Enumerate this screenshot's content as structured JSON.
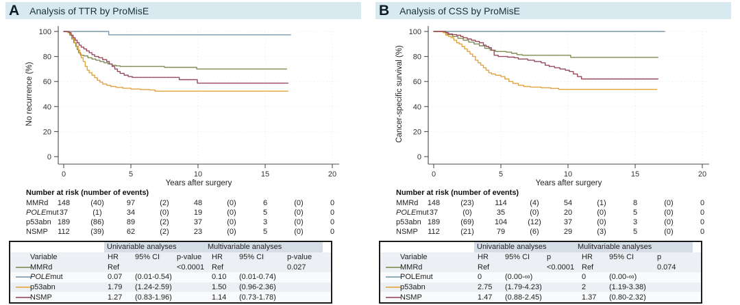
{
  "colors": {
    "header_bar": "#d9e9f0",
    "MMRd": "#7f8a52",
    "POLEmut": "#7b97ab",
    "p53abn": "#e1a23f",
    "NSMP": "#96485b",
    "axis": "#4a4a4a",
    "grid": "#ededed"
  },
  "panels": [
    {
      "letter": "A",
      "title": "Analysis of TTR by ProMisE",
      "risk_header": "Number at risk (number of events)",
      "risk_rows": [
        {
          "key": "MMRd",
          "label": "MMRd",
          "values": [
            "148",
            "(40)",
            "97",
            "(2)",
            "48",
            "(0)",
            "6",
            "(0)",
            "0"
          ]
        },
        {
          "key": "POLEmut",
          "italic_part": "POLE",
          "label": "mut",
          "values": [
            "37",
            "(1)",
            "34",
            "(0)",
            "19",
            "(0)",
            "5",
            "(0)",
            "0"
          ]
        },
        {
          "key": "p53abn",
          "label": "p53abn",
          "values": [
            "189",
            "(86)",
            "89",
            "(2)",
            "37",
            "(0)",
            "3",
            "(0)",
            "0"
          ]
        },
        {
          "key": "NSMP",
          "label": "NSMP",
          "values": [
            "112",
            "(39)",
            "62",
            "(2)",
            "23",
            "(0)",
            "5",
            "(0)",
            "0"
          ]
        }
      ],
      "stats": {
        "group_headers": [
          "Univariable analyses",
          "Multivariable analyses"
        ],
        "col_headers": [
          "Variable",
          "HR",
          "95% CI",
          "p-value",
          "HR",
          "95% CI",
          "p-value"
        ],
        "rows": [
          {
            "key": "MMRd",
            "label": "MMRd",
            "cells": [
              "Ref",
              "",
              "<0.0001",
              "Ref",
              "",
              "0.027"
            ]
          },
          {
            "key": "POLEmut",
            "italic_part": "POLE",
            "label": "mut",
            "cells": [
              "0.07",
              "(0.01-0.54)",
              "",
              "0.10",
              "(0.01-0.74)",
              ""
            ]
          },
          {
            "key": "p53abn",
            "label": "p53abn",
            "cells": [
              "1.79",
              "(1.24-2.59)",
              "",
              "1.50",
              "(0.96-2.36)",
              ""
            ]
          },
          {
            "key": "NSMP",
            "label": "NSMP",
            "cells": [
              "1.27",
              "(0.83-1.96)",
              "",
              "1.14",
              "(0.73-1.78)",
              ""
            ]
          }
        ]
      }
    },
    {
      "letter": "B",
      "title": "Analysis of CSS by ProMisE",
      "risk_header": "Number at risk (number of events)",
      "risk_rows": [
        {
          "key": "MMRd",
          "label": "MMRd",
          "values": [
            "148",
            "(23)",
            "114",
            "(4)",
            "54",
            "(1)",
            "8",
            "(0)",
            "0"
          ]
        },
        {
          "key": "POLEmut",
          "italic_part": "POLE",
          "label": "mut",
          "values": [
            "37",
            "(0)",
            "35",
            "(0)",
            "20",
            "(0)",
            "5",
            "(0)",
            "0"
          ]
        },
        {
          "key": "p53abn",
          "label": "p53abn",
          "values": [
            "189",
            "(69)",
            "104",
            "(12)",
            "37",
            "(0)",
            "3",
            "(0)",
            "0"
          ]
        },
        {
          "key": "NSMP",
          "label": "NSMP",
          "values": [
            "112",
            "(21)",
            "79",
            "(6)",
            "29",
            "(3)",
            "5",
            "(0)",
            "0"
          ]
        }
      ],
      "stats": {
        "group_headers": [
          "Univariable analyses",
          "Mulitvariable analyses"
        ],
        "col_headers": [
          "Variable",
          "HR",
          "95% CI",
          "p",
          "HR",
          "95% CI",
          "p"
        ],
        "rows": [
          {
            "key": "MMRd",
            "label": "MMRd",
            "cells": [
              "Ref",
              "",
              "<0.0001",
              "Ref",
              "",
              "0.074"
            ]
          },
          {
            "key": "POLEmut",
            "label": "POLEmut",
            "cells": [
              "0",
              "(0.00-∞)",
              "",
              "0",
              "(0.00-∞)",
              ""
            ]
          },
          {
            "key": "p53abn",
            "label": "p53abn",
            "cells": [
              "2.75",
              "(1.79-4.23)",
              "",
              "2",
              "(1.19-3.38)",
              ""
            ]
          },
          {
            "key": "NSMP",
            "label": "NSMP",
            "cells": [
              "1.47",
              "(0.88-2.45)",
              "",
              "1.37",
              "(0.80-2.32)",
              ""
            ]
          }
        ]
      }
    }
  ],
  "chart_data": [
    {
      "type": "line",
      "title": "Analysis of TTR by ProMisE",
      "xlabel": "Years after surgery",
      "ylabel": "No recurrence (%)",
      "xlim": [
        0,
        20
      ],
      "ylim": [
        0,
        100
      ],
      "x_ticks": [
        0,
        5,
        10,
        15,
        20
      ],
      "y_ticks": [
        0,
        20,
        40,
        60,
        80,
        100
      ],
      "grid": "faint-dotted",
      "legend_position": "table-below",
      "series": [
        {
          "name": "MMRd",
          "color": "#7f8a52",
          "points": [
            [
              0,
              100
            ],
            [
              0.3,
              99
            ],
            [
              0.45,
              97
            ],
            [
              0.6,
              94
            ],
            [
              0.75,
              91
            ],
            [
              0.9,
              88
            ],
            [
              1,
              85.5
            ],
            [
              1.1,
              83
            ],
            [
              1.25,
              81
            ],
            [
              1.5,
              80.5
            ],
            [
              1.8,
              79
            ],
            [
              2.1,
              78
            ],
            [
              2.4,
              77
            ],
            [
              2.7,
              76
            ],
            [
              3,
              75
            ],
            [
              3.3,
              74
            ],
            [
              3.6,
              73
            ],
            [
              3.9,
              72.5
            ],
            [
              4.2,
              72
            ],
            [
              7.4,
              72
            ],
            [
              7.5,
              71.3
            ],
            [
              9.8,
              71.3
            ],
            [
              9.9,
              70
            ],
            [
              16.6,
              70
            ]
          ]
        },
        {
          "name": "POLEmut",
          "color": "#7b97ab",
          "points": [
            [
              0,
              100
            ],
            [
              3.3,
              100
            ],
            [
              3.35,
              97.3
            ],
            [
              16.9,
              97.3
            ]
          ]
        },
        {
          "name": "p53abn",
          "color": "#e1a23f",
          "points": [
            [
              0,
              100
            ],
            [
              0.3,
              99
            ],
            [
              0.5,
              97
            ],
            [
              0.65,
              94
            ],
            [
              0.8,
              91
            ],
            [
              0.95,
              88
            ],
            [
              1.1,
              85
            ],
            [
              1.2,
              82
            ],
            [
              1.3,
              79
            ],
            [
              1.45,
              76
            ],
            [
              1.6,
              72
            ],
            [
              1.75,
              69
            ],
            [
              1.9,
              67
            ],
            [
              2.1,
              65
            ],
            [
              2.3,
              63
            ],
            [
              2.5,
              61
            ],
            [
              2.7,
              59.5
            ],
            [
              2.9,
              58
            ],
            [
              3.2,
              57
            ],
            [
              3.5,
              56
            ],
            [
              3.9,
              55.3
            ],
            [
              4.4,
              54.6
            ],
            [
              5,
              54
            ],
            [
              5.7,
              53.6
            ],
            [
              6.4,
              53.2
            ],
            [
              6.8,
              52.3
            ],
            [
              16.7,
              52.3
            ]
          ]
        },
        {
          "name": "NSMP",
          "color": "#96485b",
          "points": [
            [
              0,
              100
            ],
            [
              0.4,
              99
            ],
            [
              0.55,
              97
            ],
            [
              0.7,
              95
            ],
            [
              0.85,
              93
            ],
            [
              1,
              91
            ],
            [
              1.15,
              89
            ],
            [
              1.3,
              87.5
            ],
            [
              1.5,
              86
            ],
            [
              1.7,
              84.5
            ],
            [
              1.9,
              83
            ],
            [
              2.1,
              81.5
            ],
            [
              2.3,
              80
            ],
            [
              2.6,
              79
            ],
            [
              2.9,
              77.5
            ],
            [
              3.2,
              76
            ],
            [
              3.4,
              74
            ],
            [
              3.6,
              72
            ],
            [
              3.8,
              70
            ],
            [
              4,
              68
            ],
            [
              4.2,
              66.5
            ],
            [
              4.5,
              65
            ],
            [
              4.8,
              64
            ],
            [
              5.1,
              63.3
            ],
            [
              8.5,
              63.3
            ],
            [
              8.6,
              61.5
            ],
            [
              9.8,
              61.5
            ],
            [
              9.95,
              58.7
            ],
            [
              16.7,
              58.7
            ]
          ]
        }
      ]
    },
    {
      "type": "line",
      "title": "Analysis of CSS by ProMisE",
      "xlabel": "Years after surgery",
      "ylabel": "Cancer-specific survival (%)",
      "xlim": [
        0,
        20
      ],
      "ylim": [
        0,
        100
      ],
      "x_ticks": [
        0,
        5,
        10,
        15,
        20
      ],
      "y_ticks": [
        0,
        20,
        40,
        60,
        80,
        100
      ],
      "grid": "faint-dotted",
      "legend_position": "table-below",
      "series": [
        {
          "name": "MMRd",
          "color": "#7f8a52",
          "points": [
            [
              0,
              100
            ],
            [
              0.7,
              99.3
            ],
            [
              1,
              97.5
            ],
            [
              1.4,
              96
            ],
            [
              1.8,
              94.5
            ],
            [
              2.2,
              93
            ],
            [
              2.6,
              91.5
            ],
            [
              3,
              90
            ],
            [
              3.4,
              88.5
            ],
            [
              3.8,
              86.5
            ],
            [
              4.2,
              85
            ],
            [
              4.6,
              84
            ],
            [
              5.4,
              83.5
            ],
            [
              5.8,
              82.5
            ],
            [
              6.2,
              81.5
            ],
            [
              6.6,
              81
            ],
            [
              10.1,
              81
            ],
            [
              10.2,
              79.3
            ],
            [
              16.7,
              79.3
            ]
          ]
        },
        {
          "name": "POLEmut",
          "color": "#7b97ab",
          "points": [
            [
              0,
              100
            ],
            [
              17.2,
              100
            ]
          ]
        },
        {
          "name": "p53abn",
          "color": "#e1a23f",
          "points": [
            [
              0,
              100
            ],
            [
              0.7,
              99
            ],
            [
              0.9,
              97
            ],
            [
              1.1,
              96
            ],
            [
              1.3,
              95
            ],
            [
              1.5,
              93
            ],
            [
              1.7,
              91
            ],
            [
              1.9,
              90
            ],
            [
              2.1,
              88
            ],
            [
              2.3,
              86
            ],
            [
              2.5,
              84
            ],
            [
              2.7,
              82
            ],
            [
              2.9,
              80
            ],
            [
              3.1,
              77
            ],
            [
              3.3,
              75
            ],
            [
              3.5,
              73
            ],
            [
              3.7,
              71
            ],
            [
              3.9,
              69
            ],
            [
              4.1,
              67
            ],
            [
              4.3,
              66
            ],
            [
              4.6,
              65
            ],
            [
              5,
              64
            ],
            [
              5.3,
              62
            ],
            [
              5.6,
              60
            ],
            [
              5.9,
              58.5
            ],
            [
              6.3,
              57
            ],
            [
              6.7,
              56
            ],
            [
              7.2,
              55.5
            ],
            [
              8,
              55
            ],
            [
              8.7,
              54.5
            ],
            [
              9.3,
              53.7
            ],
            [
              16.6,
              53.7
            ]
          ]
        },
        {
          "name": "NSMP",
          "color": "#96485b",
          "points": [
            [
              0,
              100
            ],
            [
              0.9,
              99
            ],
            [
              1.1,
              98
            ],
            [
              1.4,
              97.5
            ],
            [
              1.7,
              97
            ],
            [
              2,
              96
            ],
            [
              2.2,
              95
            ],
            [
              2.5,
              94
            ],
            [
              2.8,
              93
            ],
            [
              3.1,
              92
            ],
            [
              3.4,
              91
            ],
            [
              3.7,
              89
            ],
            [
              3.9,
              88
            ],
            [
              4.1,
              87
            ],
            [
              4.3,
              85
            ],
            [
              4.5,
              81
            ],
            [
              4.8,
              80
            ],
            [
              5.5,
              79.5
            ],
            [
              6,
              79
            ],
            [
              6.3,
              78
            ],
            [
              7,
              77
            ],
            [
              7.5,
              76
            ],
            [
              8,
              75
            ],
            [
              8.3,
              73
            ],
            [
              8.6,
              72
            ],
            [
              9,
              71
            ],
            [
              9.4,
              70
            ],
            [
              9.8,
              69
            ],
            [
              10.1,
              68
            ],
            [
              10.4,
              66
            ],
            [
              10.7,
              64
            ],
            [
              11,
              62
            ],
            [
              16.7,
              62
            ]
          ]
        }
      ]
    }
  ]
}
